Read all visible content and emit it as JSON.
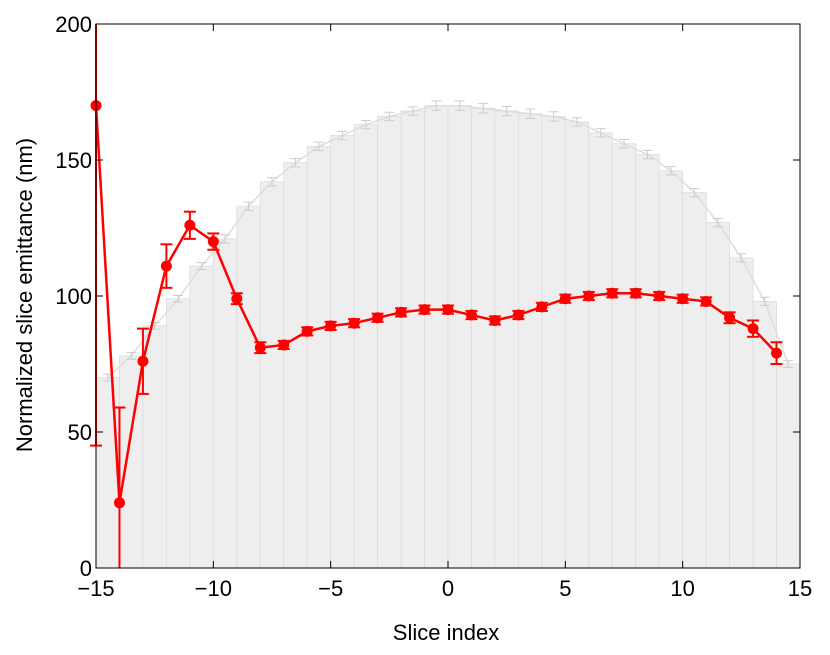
{
  "chart_data": {
    "type": "bar",
    "xlabel": "Slice index",
    "ylabel": "Normalized slice emittance (nm)",
    "xlim": [
      -15,
      15
    ],
    "ylim": [
      0,
      200
    ],
    "x_ticks": [
      -15,
      -10,
      -5,
      0,
      5,
      10,
      15
    ],
    "x_tick_labels": [
      "−15",
      "−10",
      "−5",
      "0",
      "5",
      "10",
      "15"
    ],
    "y_ticks": [
      0,
      50,
      100,
      150,
      200
    ],
    "y_tick_labels": [
      "0",
      "50",
      "100",
      "150",
      "200"
    ],
    "grid": false,
    "legend": "none",
    "colors": {
      "bars": "#eeeeee",
      "bar_edge": "#dcdcdc",
      "line": "#ff0000"
    },
    "bars": {
      "x": [
        -15,
        -14,
        -13,
        -12,
        -11,
        -10,
        -9,
        -8,
        -7,
        -6,
        -5,
        -4,
        -3,
        -2,
        -1,
        0,
        1,
        2,
        3,
        4,
        5,
        6,
        7,
        8,
        9,
        10,
        11,
        12,
        13,
        14
      ],
      "values": [
        70,
        78,
        89,
        99,
        111,
        121,
        133,
        142,
        149,
        155,
        159,
        163,
        166,
        168,
        170,
        170,
        169,
        168,
        167,
        166,
        164,
        160,
        156,
        152,
        146,
        138,
        127,
        114,
        98,
        75
      ],
      "errors": [
        0.5,
        0.5,
        0.5,
        0.5,
        0.5,
        0.8,
        0.8,
        0.8,
        0.8,
        0.8,
        0.8,
        0.8,
        0.8,
        0.8,
        1.0,
        1.0,
        1.0,
        1.0,
        1.0,
        1.0,
        0.8,
        0.8,
        0.8,
        0.8,
        0.8,
        0.8,
        0.8,
        0.8,
        0.8,
        0.5
      ]
    },
    "series": [
      {
        "x": [
          -15,
          -14,
          -13,
          -12,
          -11,
          -10,
          -9,
          -8,
          -7,
          -6,
          -5,
          -4,
          -3,
          -2,
          -1,
          0,
          1,
          2,
          3,
          4,
          5,
          6,
          7,
          8,
          9,
          10,
          11,
          12,
          13,
          14
        ],
        "values": [
          170,
          24,
          76,
          111,
          126,
          120,
          99,
          81,
          82,
          87,
          89,
          90,
          92,
          94,
          95,
          95,
          93,
          91,
          93,
          96,
          99,
          100,
          101,
          101,
          100,
          99,
          98,
          92,
          88,
          79
        ],
        "errors": [
          125,
          35,
          12,
          8,
          5,
          3,
          2,
          2,
          1.5,
          1.5,
          1.5,
          1.5,
          1.5,
          1.5,
          1.5,
          1.5,
          1.5,
          1.5,
          1.5,
          1.5,
          1.5,
          1.5,
          1.5,
          1.5,
          1.5,
          1.5,
          1.5,
          2,
          3,
          4
        ]
      }
    ]
  }
}
